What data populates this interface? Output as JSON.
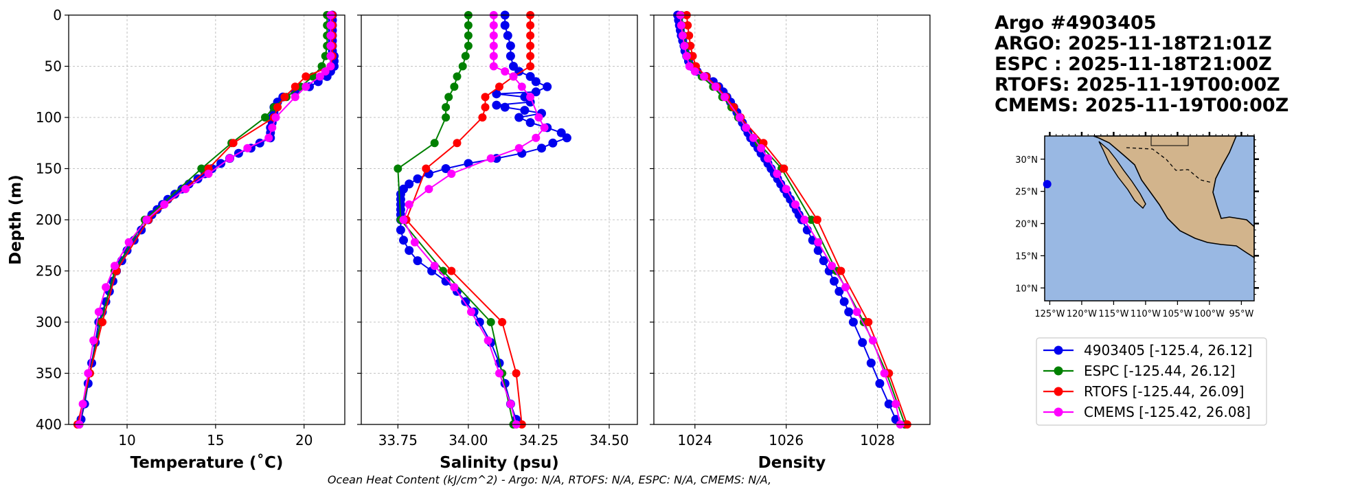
{
  "chart_data": {
    "type": "line",
    "footer": "Ocean Heat Content (kJ/cm^2) - Argo: N/A,  RTOFS: N/A,  ESPC: N/A,  CMEMS: N/A,",
    "title_lines": [
      "Argo #4903405",
      "ARGO: 2025-11-18T21:01Z",
      "ESPC : 2025-11-18T21:00Z",
      "RTOFS: 2025-11-19T00:00Z",
      "CMEMS: 2025-11-19T00:00Z"
    ],
    "ylabel": "Depth (m)",
    "ylim": [
      0,
      400
    ],
    "y_ticks": [
      0,
      50,
      100,
      150,
      200,
      250,
      300,
      350,
      400
    ],
    "colors": {
      "argo": "#0000ee",
      "espc": "#008000",
      "rtofs": "#ff0000",
      "cmems": "#ff00ff"
    },
    "legend": [
      {
        "key": "argo",
        "label": "4903405 [-125.4, 26.12]"
      },
      {
        "key": "espc",
        "label": "ESPC [-125.44, 26.12]"
      },
      {
        "key": "rtofs",
        "label": "RTOFS [-125.44, 26.09]"
      },
      {
        "key": "cmems",
        "label": "CMEMS [-125.42, 26.08]"
      }
    ],
    "panels": [
      {
        "id": "temperature",
        "xlabel": "Temperature (˚C)",
        "xlim": [
          6.7,
          22.3
        ],
        "x_ticks": [
          10,
          15,
          20
        ],
        "x_tick_labels": [
          "10",
          "15",
          "20"
        ],
        "series": {
          "argo": {
            "depth": [
              0,
              5,
              10,
              15,
              20,
              25,
              30,
              35,
              40,
              45,
              50,
              55,
              60,
              65,
              70,
              75,
              80,
              85,
              90,
              95,
              100,
              105,
              110,
              115,
              120,
              125,
              130,
              135,
              140,
              145,
              150,
              155,
              160,
              165,
              170,
              175,
              180,
              185,
              190,
              195,
              200,
              210,
              220,
              230,
              240,
              250,
              260,
              270,
              280,
              290,
              300,
              320,
              340,
              360,
              380,
              395
            ],
            "value": [
              21.6,
              21.6,
              21.6,
              21.6,
              21.6,
              21.6,
              21.6,
              21.6,
              21.7,
              21.7,
              21.7,
              21.5,
              21.3,
              20.8,
              20.3,
              19.5,
              18.8,
              18.5,
              18.3,
              18.3,
              18.2,
              18.2,
              18.1,
              18.1,
              18.1,
              17.5,
              17.0,
              16.3,
              15.8,
              15.3,
              14.8,
              14.4,
              14.0,
              13.5,
              13.1,
              12.7,
              12.3,
              12.0,
              11.7,
              11.4,
              11.2,
              10.8,
              10.4,
              10.0,
              9.7,
              9.4,
              9.2,
              9.0,
              8.8,
              8.6,
              8.4,
              8.2,
              8.0,
              7.8,
              7.6,
              7.4
            ]
          },
          "espc": {
            "depth": [
              0,
              10,
              20,
              30,
              40,
              50,
              60,
              70,
              80,
              90,
              100,
              125,
              150,
              200,
              250,
              300,
              350,
              400
            ],
            "value": [
              21.3,
              21.3,
              21.3,
              21.3,
              21.2,
              21.0,
              20.5,
              19.8,
              19.0,
              18.3,
              17.8,
              15.9,
              14.2,
              11.0,
              9.3,
              8.5,
              7.9,
              7.3
            ]
          },
          "rtofs": {
            "depth": [
              0,
              10,
              20,
              30,
              40,
              50,
              60,
              70,
              80,
              90,
              100,
              125,
              150,
              200,
              250,
              300,
              350,
              400
            ],
            "value": [
              21.6,
              21.6,
              21.6,
              21.6,
              21.6,
              21.5,
              20.1,
              19.5,
              18.9,
              18.5,
              18.3,
              16.0,
              14.6,
              11.2,
              9.4,
              8.6,
              7.9,
              7.2
            ]
          },
          "cmems": {
            "depth": [
              0,
              10,
              20,
              30,
              40,
              50,
              55,
              60,
              70,
              80,
              100,
              110,
              120,
              130,
              140,
              155,
              170,
              185,
              200,
              222,
              245,
              266,
              290,
              318,
              350,
              380,
              400
            ],
            "value": [
              21.5,
              21.5,
              21.5,
              21.5,
              21.5,
              21.5,
              21.2,
              20.9,
              20.1,
              19.5,
              18.4,
              18.2,
              18.0,
              16.8,
              15.8,
              14.6,
              13.3,
              12.1,
              11.1,
              10.1,
              9.3,
              8.8,
              8.4,
              8.1,
              7.8,
              7.5,
              7.3
            ]
          }
        }
      },
      {
        "id": "salinity",
        "xlabel": "Salinity (psu)",
        "xlim": [
          33.62,
          34.6
        ],
        "x_ticks": [
          33.75,
          34.0,
          34.25,
          34.5
        ],
        "x_tick_labels": [
          "33.75",
          "34.00",
          "34.25",
          "34.50"
        ],
        "series": {
          "argo": {
            "depth": [
              0,
              10,
              20,
              30,
              40,
              50,
              55,
              60,
              65,
              70,
              75,
              77,
              80,
              85,
              88,
              90,
              93,
              96,
              100,
              105,
              110,
              115,
              120,
              125,
              130,
              135,
              140,
              145,
              150,
              155,
              160,
              165,
              170,
              175,
              180,
              185,
              190,
              195,
              200,
              210,
              220,
              230,
              240,
              250,
              260,
              270,
              280,
              290,
              300,
              320,
              340,
              360,
              380,
              395
            ],
            "value": [
              34.13,
              34.13,
              34.14,
              34.15,
              34.15,
              34.16,
              34.18,
              34.22,
              34.24,
              34.28,
              34.24,
              34.1,
              34.2,
              34.22,
              34.1,
              34.13,
              34.2,
              34.26,
              34.18,
              34.22,
              34.28,
              34.33,
              34.35,
              34.3,
              34.26,
              34.19,
              34.1,
              34.0,
              33.92,
              33.86,
              33.82,
              33.79,
              33.77,
              33.76,
              33.76,
              33.76,
              33.76,
              33.76,
              33.76,
              33.76,
              33.77,
              33.79,
              33.82,
              33.87,
              33.92,
              33.96,
              33.99,
              34.02,
              34.04,
              34.08,
              34.11,
              34.13,
              34.15,
              34.17
            ]
          },
          "espc": {
            "depth": [
              0,
              10,
              20,
              30,
              40,
              50,
              60,
              70,
              80,
              90,
              100,
              125,
              150,
              200,
              250,
              300,
              350,
              400
            ],
            "value": [
              34.0,
              34.0,
              34.0,
              34.0,
              33.99,
              33.98,
              33.96,
              33.95,
              33.93,
              33.92,
              33.92,
              33.88,
              33.75,
              33.76,
              33.91,
              34.08,
              34.12,
              34.16
            ]
          },
          "rtofs": {
            "depth": [
              0,
              10,
              20,
              30,
              40,
              50,
              60,
              70,
              80,
              90,
              100,
              125,
              150,
              200,
              250,
              300,
              350,
              400
            ],
            "value": [
              34.22,
              34.22,
              34.22,
              34.22,
              34.22,
              34.22,
              34.16,
              34.11,
              34.06,
              34.06,
              34.05,
              33.96,
              33.85,
              33.78,
              33.94,
              34.12,
              34.17,
              34.19
            ]
          },
          "cmems": {
            "depth": [
              0,
              10,
              20,
              30,
              40,
              50,
              55,
              60,
              70,
              80,
              100,
              110,
              120,
              130,
              140,
              155,
              170,
              185,
              200,
              222,
              245,
              266,
              290,
              318,
              350,
              380,
              400
            ],
            "value": [
              34.09,
              34.09,
              34.09,
              34.09,
              34.09,
              34.09,
              34.13,
              34.16,
              34.19,
              34.22,
              34.25,
              34.27,
              34.24,
              34.18,
              34.08,
              33.94,
              33.86,
              33.79,
              33.77,
              33.81,
              33.88,
              33.95,
              34.01,
              34.07,
              34.11,
              34.15,
              34.17
            ]
          }
        }
      },
      {
        "id": "density",
        "xlabel": "Density",
        "xlim": [
          1023.1,
          1029.15
        ],
        "x_ticks": [
          1024,
          1026,
          1028
        ],
        "x_tick_labels": [
          "1024",
          "1026",
          "1028"
        ],
        "series": {
          "argo": {
            "depth": [
              0,
              5,
              10,
              15,
              20,
              25,
              30,
              35,
              40,
              45,
              50,
              55,
              60,
              65,
              70,
              75,
              80,
              85,
              90,
              95,
              100,
              105,
              110,
              115,
              120,
              125,
              130,
              135,
              140,
              145,
              150,
              155,
              160,
              165,
              170,
              175,
              180,
              185,
              190,
              195,
              200,
              210,
              220,
              230,
              240,
              250,
              260,
              270,
              280,
              290,
              300,
              320,
              340,
              360,
              380,
              395
            ],
            "value": [
              1023.62,
              1023.64,
              1023.66,
              1023.68,
              1023.7,
              1023.73,
              1023.76,
              1023.78,
              1023.82,
              1023.86,
              1023.92,
              1024.05,
              1024.25,
              1024.4,
              1024.52,
              1024.62,
              1024.7,
              1024.78,
              1024.85,
              1024.92,
              1024.98,
              1025.04,
              1025.1,
              1025.16,
              1025.22,
              1025.3,
              1025.38,
              1025.45,
              1025.53,
              1025.6,
              1025.67,
              1025.74,
              1025.81,
              1025.88,
              1025.95,
              1026.02,
              1026.09,
              1026.16,
              1026.22,
              1026.28,
              1026.34,
              1026.46,
              1026.58,
              1026.7,
              1026.82,
              1026.94,
              1027.05,
              1027.16,
              1027.27,
              1027.37,
              1027.47,
              1027.67,
              1027.86,
              1028.05,
              1028.25,
              1028.4
            ]
          },
          "espc": {
            "depth": [
              0,
              10,
              20,
              30,
              40,
              50,
              60,
              70,
              80,
              90,
              100,
              125,
              150,
              200,
              250,
              300,
              350,
              400
            ],
            "value": [
              1023.7,
              1023.72,
              1023.75,
              1023.8,
              1023.88,
              1023.95,
              1024.15,
              1024.4,
              1024.6,
              1024.8,
              1024.95,
              1025.4,
              1025.9,
              1026.55,
              1027.1,
              1027.7,
              1028.2,
              1028.6
            ]
          },
          "rtofs": {
            "depth": [
              0,
              10,
              20,
              30,
              40,
              50,
              60,
              70,
              80,
              90,
              100,
              125,
              150,
              200,
              250,
              300,
              350,
              400
            ],
            "value": [
              1023.82,
              1023.84,
              1023.87,
              1023.9,
              1023.95,
              1024.02,
              1024.25,
              1024.48,
              1024.68,
              1024.85,
              1025.0,
              1025.5,
              1025.95,
              1026.68,
              1027.2,
              1027.8,
              1028.25,
              1028.65
            ]
          },
          "cmems": {
            "depth": [
              0,
              10,
              20,
              30,
              40,
              50,
              55,
              60,
              70,
              80,
              100,
              110,
              120,
              130,
              140,
              155,
              170,
              185,
              200,
              222,
              245,
              266,
              290,
              318,
              350,
              380,
              400
            ],
            "value": [
              1023.68,
              1023.7,
              1023.73,
              1023.77,
              1023.82,
              1023.88,
              1024.0,
              1024.2,
              1024.45,
              1024.65,
              1024.98,
              1025.12,
              1025.28,
              1025.45,
              1025.6,
              1025.8,
              1026.0,
              1026.2,
              1026.4,
              1026.7,
              1027.0,
              1027.3,
              1027.55,
              1027.9,
              1028.15,
              1028.4,
              1028.5
            ]
          }
        }
      }
    ],
    "map": {
      "lat_ticks": [
        "30°N",
        "25°N",
        "20°N",
        "15°N",
        "10°N"
      ],
      "lon_ticks": [
        "125°W",
        "120°W",
        "115°W",
        "110°W",
        "105°W",
        "100°W",
        "95°W"
      ],
      "colors": {
        "ocean": "#99b8e3",
        "land": "#d2b48c"
      },
      "marker": {
        "lon": -125.4,
        "lat": 26.12
      }
    }
  }
}
